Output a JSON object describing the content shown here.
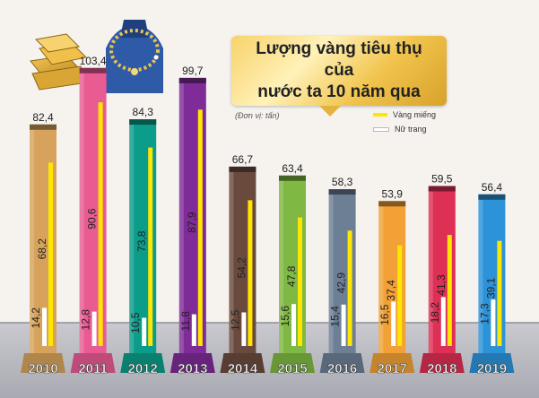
{
  "title_line1": "Lượng vàng tiêu thụ của",
  "title_line2": "nước ta 10 năm qua",
  "unit_note": "(Đơn vị: tấn)",
  "legend": [
    {
      "label": "Vàng miếng",
      "color": "#ffe600"
    },
    {
      "label": "Nữ trang",
      "color": "#ffffff"
    }
  ],
  "chart_data": {
    "type": "bar",
    "categories": [
      "2010",
      "2011",
      "2012",
      "2013",
      "2014",
      "2015",
      "2016",
      "2017",
      "2018",
      "2019"
    ],
    "totals": [
      82.4,
      103.4,
      84.3,
      99.7,
      66.7,
      63.4,
      58.3,
      53.9,
      59.5,
      56.4
    ],
    "total_labels": [
      "82,4",
      "103,4",
      "84,3",
      "99,7",
      "66,7",
      "63,4",
      "58,3",
      "53,9",
      "59,5",
      "56,4"
    ],
    "series": [
      {
        "name": "Vàng miếng",
        "values": [
          68.2,
          90.6,
          73.8,
          87.9,
          54.2,
          47.8,
          42.9,
          37.4,
          41.3,
          39.1
        ],
        "labels": [
          "68,2",
          "90,6",
          "73,8",
          "87,9",
          "54,2",
          "47,8",
          "42,9",
          "37,4",
          "41,3",
          "39,1"
        ]
      },
      {
        "name": "Nữ trang",
        "values": [
          14.2,
          12.8,
          10.5,
          11.8,
          12.5,
          15.6,
          15.4,
          16.5,
          18.2,
          17.3
        ],
        "labels": [
          "14,2",
          "12,8",
          "10,5",
          "11,8",
          "12,5",
          "15,6",
          "15,4",
          "16,5",
          "18,2",
          "17,3"
        ]
      }
    ],
    "column_colors": [
      "#d7a35c",
      "#e85b93",
      "#0c9c8a",
      "#7f2b98",
      "#6b4a3e",
      "#7fb842",
      "#6c7f95",
      "#f2a137",
      "#de2f55",
      "#2d93d9"
    ]
  }
}
